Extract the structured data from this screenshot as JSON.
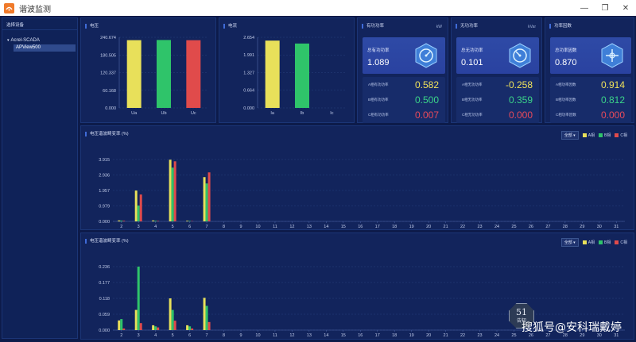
{
  "window": {
    "title": "谐波监测",
    "controls": [
      "—",
      "❐",
      "✕"
    ]
  },
  "sidebar": {
    "header": "选择设备",
    "tree_root": "Acrel-SCADA",
    "tree_child": "APView500"
  },
  "colors": {
    "a": "#e8e05a",
    "b": "#2fc46a",
    "c": "#e04b4b",
    "accent": "#3f6bd8",
    "row_pos": "#f0e25a",
    "row_mid": "#3bd489",
    "row_neg": "#e84a5a"
  },
  "voltage": {
    "title": "电压",
    "ticks": [
      "240.674",
      "180.505",
      "120.337",
      "60.168",
      "0.000"
    ]
  },
  "current": {
    "title": "电流",
    "ticks": [
      "2.654",
      "1.991",
      "1.327",
      "0.664",
      "0.000"
    ]
  },
  "active_power": {
    "title": "有功功率",
    "unit": "kW",
    "total_label": "总有功功率",
    "total_value": "1.089",
    "rows": [
      {
        "label": "A相有功功率",
        "value": "0.582"
      },
      {
        "label": "B相有功功率",
        "value": "0.500"
      },
      {
        "label": "C相有功功率",
        "value": "0.007"
      }
    ]
  },
  "reactive_power": {
    "title": "无功功率",
    "unit": "kVar",
    "total_label": "总无功功率",
    "total_value": "0.101",
    "rows": [
      {
        "label": "A相无功功率",
        "value": "-0.258"
      },
      {
        "label": "B相无功功率",
        "value": "0.359"
      },
      {
        "label": "C相无功功率",
        "value": "0.000"
      }
    ]
  },
  "power_factor": {
    "title": "功率因数",
    "unit": "",
    "total_label": "总功率因数",
    "total_value": "0.870",
    "rows": [
      {
        "label": "A相功率因数",
        "value": "0.914"
      },
      {
        "label": "B相功率因数",
        "value": "0.812"
      },
      {
        "label": "C相功率因数",
        "value": "0.000"
      }
    ]
  },
  "harmonic_upper": {
    "title": "电压谐波畸变率 (%)",
    "select": "全部 ▾",
    "legend": [
      "A相",
      "B相",
      "C相"
    ]
  },
  "harmonic_lower": {
    "title": "电压谐波畸变率 (%)",
    "select": "全部 ▾",
    "legend": [
      "A相",
      "B相",
      "C相"
    ]
  },
  "watermark": "搜狐号@安科瑞戴婷",
  "notice_badge": {
    "count": "51",
    "label": "告知"
  },
  "chart_data": [
    {
      "type": "bar",
      "title": "电压",
      "categories": [
        "Ua",
        "Ub",
        "Uc"
      ],
      "values": [
        231.0,
        231.5,
        230.8
      ],
      "ylim": [
        0,
        240.674
      ],
      "yticks": [
        0.0,
        60.168,
        120.337,
        180.505,
        240.674
      ]
    },
    {
      "type": "bar",
      "title": "电流",
      "categories": [
        "Ia",
        "Ib",
        "Ic"
      ],
      "values": [
        2.53,
        2.42,
        0.0
      ],
      "ylim": [
        0,
        2.654
      ],
      "yticks": [
        0.0,
        0.664,
        1.327,
        1.991,
        2.654
      ]
    },
    {
      "type": "bar",
      "title": "电压谐波畸变率 (%)",
      "categories": [
        "2",
        "3",
        "4",
        "5",
        "6",
        "7",
        "8",
        "9",
        "10",
        "11",
        "12",
        "13",
        "14",
        "15",
        "16",
        "17",
        "18",
        "19",
        "20",
        "21",
        "22",
        "23",
        "24",
        "25",
        "26",
        "27",
        "28",
        "29",
        "30",
        "31"
      ],
      "ylim": [
        0,
        3.915
      ],
      "yticks": [
        0.0,
        0.979,
        1.957,
        2.936,
        3.915
      ],
      "series": [
        {
          "name": "A相",
          "values": [
            0.06,
            1.95,
            0.06,
            3.9,
            0.04,
            2.8,
            0,
            0,
            0,
            0,
            0,
            0,
            0,
            0,
            0,
            0,
            0,
            0,
            0,
            0,
            0,
            0,
            0,
            0,
            0,
            0,
            0,
            0,
            0,
            0
          ]
        },
        {
          "name": "B相",
          "values": [
            0.05,
            1.0,
            0.04,
            3.4,
            0.03,
            2.4,
            0,
            0,
            0,
            0,
            0,
            0,
            0,
            0,
            0,
            0,
            0,
            0,
            0,
            0,
            0,
            0,
            0,
            0,
            0,
            0,
            0,
            0,
            0,
            0
          ]
        },
        {
          "name": "C相",
          "values": [
            0.04,
            1.7,
            0.03,
            3.8,
            0.02,
            3.1,
            0,
            0,
            0,
            0,
            0,
            0,
            0,
            0,
            0,
            0,
            0,
            0,
            0,
            0,
            0,
            0,
            0,
            0,
            0,
            0,
            0,
            0,
            0,
            0
          ]
        }
      ]
    },
    {
      "type": "bar",
      "title": "电压谐波畸变率 (%)",
      "categories": [
        "2",
        "3",
        "4",
        "5",
        "6",
        "7",
        "8",
        "9",
        "10",
        "11",
        "12",
        "13",
        "14",
        "15",
        "16",
        "17",
        "18",
        "19",
        "20",
        "21",
        "22",
        "23",
        "24",
        "25",
        "26",
        "27",
        "28",
        "29",
        "30",
        "31"
      ],
      "ylim": [
        0,
        0.236
      ],
      "yticks": [
        0.0,
        0.059,
        0.118,
        0.177,
        0.236
      ],
      "series": [
        {
          "name": "A相",
          "values": [
            0.036,
            0.075,
            0.018,
            0.118,
            0.018,
            0.12,
            0,
            0,
            0,
            0,
            0,
            0,
            0,
            0,
            0,
            0,
            0,
            0,
            0,
            0,
            0,
            0,
            0,
            0,
            0,
            0,
            0,
            0,
            0,
            0
          ]
        },
        {
          "name": "B相",
          "values": [
            0.041,
            0.236,
            0.014,
            0.075,
            0.014,
            0.09,
            0,
            0,
            0,
            0,
            0,
            0,
            0,
            0,
            0,
            0,
            0,
            0,
            0,
            0,
            0,
            0,
            0,
            0,
            0,
            0,
            0,
            0,
            0,
            0
          ]
        },
        {
          "name": "C相",
          "values": [
            0.006,
            0.026,
            0.01,
            0.035,
            0.006,
            0.03,
            0,
            0,
            0,
            0,
            0,
            0,
            0,
            0,
            0,
            0,
            0,
            0,
            0,
            0,
            0,
            0,
            0,
            0,
            0,
            0,
            0,
            0,
            0,
            0
          ]
        }
      ]
    }
  ]
}
